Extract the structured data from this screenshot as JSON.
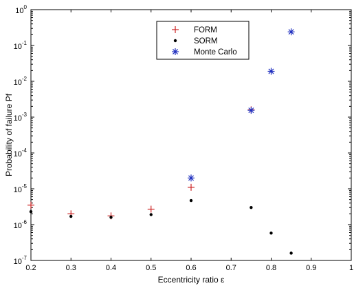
{
  "chart_data": {
    "type": "scatter",
    "title": "",
    "xlabel": "Eccentricity ratio ε",
    "ylabel": "Probability of failure Pf",
    "xlim": [
      0.2,
      1.0
    ],
    "ylim": [
      1e-07,
      1
    ],
    "y_scale": "log",
    "grid": false,
    "legend_position": "top-center",
    "x_ticks": [
      {
        "value": 0.2,
        "label": "0.2"
      },
      {
        "value": 0.3,
        "label": "0.3"
      },
      {
        "value": 0.4,
        "label": "0.4"
      },
      {
        "value": 0.5,
        "label": "0.5"
      },
      {
        "value": 0.6,
        "label": "0.6"
      },
      {
        "value": 0.7,
        "label": "0.7"
      },
      {
        "value": 0.8,
        "label": "0.8"
      },
      {
        "value": 0.9,
        "label": "0.9"
      },
      {
        "value": 1.0,
        "label": "1"
      }
    ],
    "y_ticks": [
      {
        "value": 1e-07,
        "base": "10",
        "exp": "-7"
      },
      {
        "value": 1e-06,
        "base": "10",
        "exp": "-6"
      },
      {
        "value": 1e-05,
        "base": "10",
        "exp": "-5"
      },
      {
        "value": 0.0001,
        "base": "10",
        "exp": "-4"
      },
      {
        "value": 0.001,
        "base": "10",
        "exp": "-3"
      },
      {
        "value": 0.01,
        "base": "10",
        "exp": "-2"
      },
      {
        "value": 0.1,
        "base": "10",
        "exp": "-1"
      },
      {
        "value": 1,
        "base": "10",
        "exp": "0"
      }
    ],
    "series": [
      {
        "name": "FORM",
        "marker": "plus",
        "color": "#cc2222",
        "points": [
          {
            "x": 0.2,
            "y": 3.5e-06
          },
          {
            "x": 0.3,
            "y": 2e-06
          },
          {
            "x": 0.4,
            "y": 1.75e-06
          },
          {
            "x": 0.5,
            "y": 2.7e-06
          },
          {
            "x": 0.6,
            "y": 1.1e-05
          },
          {
            "x": 0.75,
            "y": 0.0016
          }
        ]
      },
      {
        "name": "SORM",
        "marker": "dot",
        "color": "#000000",
        "points": [
          {
            "x": 0.2,
            "y": 2.3e-06
          },
          {
            "x": 0.3,
            "y": 1.7e-06
          },
          {
            "x": 0.4,
            "y": 1.6e-06
          },
          {
            "x": 0.5,
            "y": 1.9e-06
          },
          {
            "x": 0.6,
            "y": 4.7e-06
          },
          {
            "x": 0.75,
            "y": 3e-06
          },
          {
            "x": 0.8,
            "y": 5.8e-07
          },
          {
            "x": 0.85,
            "y": 1.6e-07
          }
        ]
      },
      {
        "name": "Monte Carlo",
        "marker": "star",
        "color": "#1f2fbf",
        "points": [
          {
            "x": 0.6,
            "y": 2e-05
          },
          {
            "x": 0.75,
            "y": 0.00155
          },
          {
            "x": 0.8,
            "y": 0.019
          },
          {
            "x": 0.85,
            "y": 0.24
          }
        ]
      }
    ]
  }
}
